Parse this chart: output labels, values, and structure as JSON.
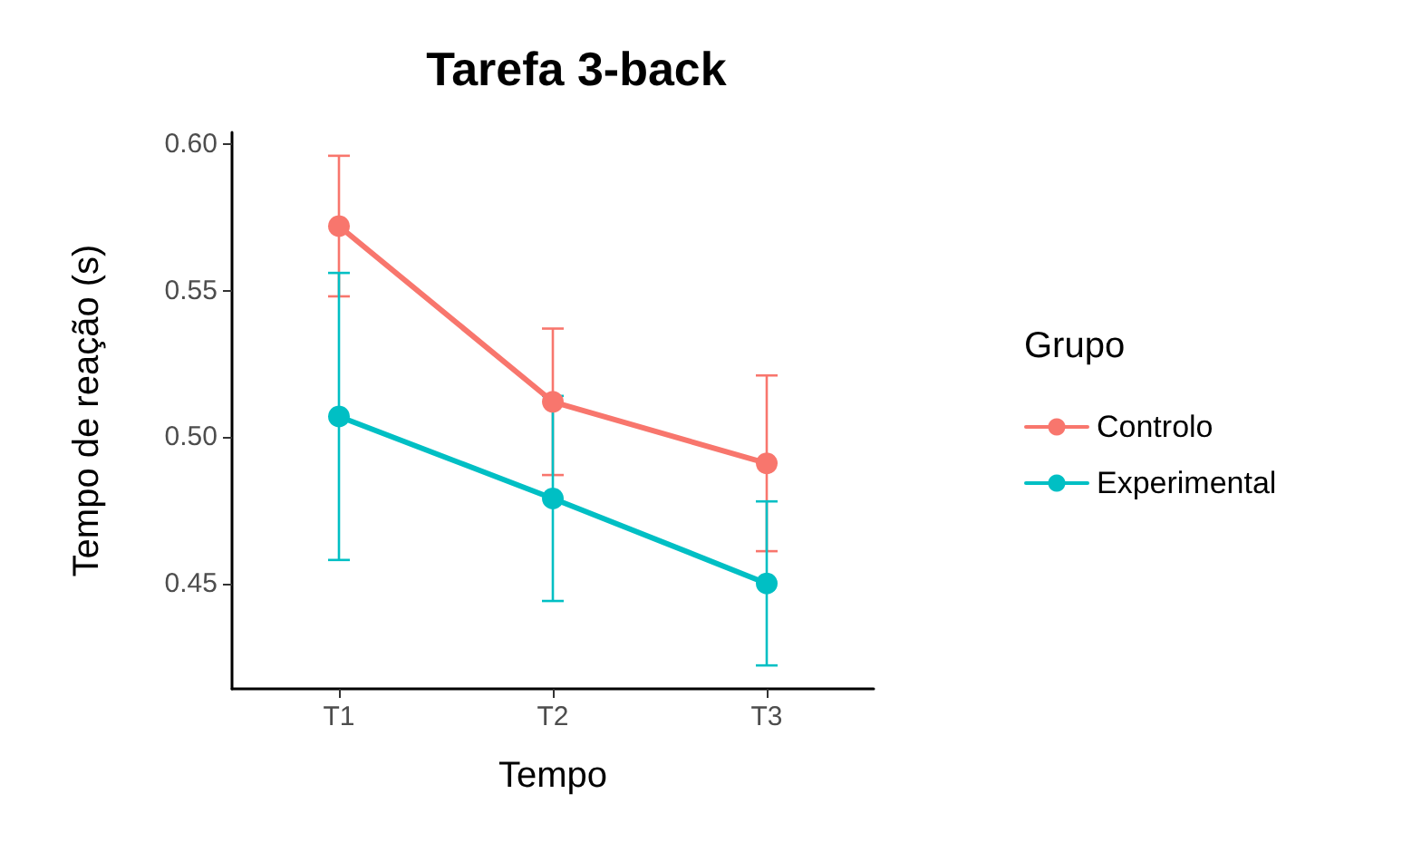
{
  "chart_data": {
    "type": "line",
    "title": "Tarefa 3-back",
    "xlabel": "Tempo",
    "ylabel": "Tempo de reação (s)",
    "legend_title": "Grupo",
    "categories": [
      "T1",
      "T2",
      "T3"
    ],
    "series": [
      {
        "name": "Controlo",
        "color": "#f8766d",
        "values": [
          0.572,
          0.512,
          0.491
        ],
        "errors": [
          0.024,
          0.025,
          0.03
        ]
      },
      {
        "name": "Experimental",
        "color": "#00bfc4",
        "values": [
          0.507,
          0.479,
          0.45
        ],
        "errors": [
          0.049,
          0.035,
          0.028
        ]
      }
    ],
    "ylim": [
      0.414,
      0.604
    ],
    "yticks": [
      0.45,
      {
        "value": 0.5,
        "label": "0.50"
      },
      0.55,
      {
        "value": 0.6,
        "label": "0.60"
      }
    ],
    "grid": false,
    "legend": "right",
    "marker": "circle",
    "line_style": "solid"
  }
}
